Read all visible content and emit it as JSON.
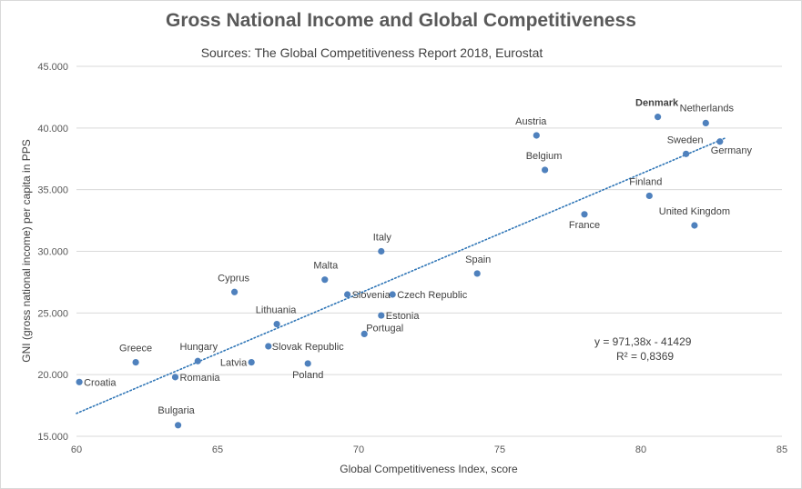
{
  "chart_data": {
    "type": "scatter",
    "title": "Gross National Income and Global Competitiveness",
    "subtitle": "Sources: The Global Competitiveness Report 2018, Eurostat",
    "xlabel": "Global Competitiveness  Index, score",
    "ylabel": "GNI (gross national income) per capita in PPS",
    "xlim": [
      60,
      85
    ],
    "ylim": [
      15000,
      45000
    ],
    "x_ticks": [
      60,
      65,
      70,
      75,
      80,
      85
    ],
    "x_tick_labels": [
      "60",
      "65",
      "70",
      "75",
      "80",
      "85"
    ],
    "y_ticks": [
      15000,
      20000,
      25000,
      30000,
      35000,
      40000,
      45000
    ],
    "y_tick_labels": [
      "15.000",
      "20.000",
      "25.000",
      "30.000",
      "35.000",
      "40.000",
      "45.000"
    ],
    "grid": "horizontal",
    "point_color": "#4f81bd",
    "trendline": {
      "style": "dotted",
      "color": "#2e75b6",
      "slope": 971.38,
      "intercept": -41429,
      "x_range": [
        60,
        83
      ],
      "equation": "y = 971,38x - 41429",
      "r_squared": "R² = 0,8369"
    },
    "points": [
      {
        "name": "Croatia",
        "x": 60.1,
        "y": 19400
      },
      {
        "name": "Greece",
        "x": 62.1,
        "y": 21000
      },
      {
        "name": "Bulgaria",
        "x": 63.6,
        "y": 15900
      },
      {
        "name": "Romania",
        "x": 63.5,
        "y": 19800
      },
      {
        "name": "Hungary",
        "x": 64.3,
        "y": 21100
      },
      {
        "name": "Cyprus",
        "x": 65.6,
        "y": 26700
      },
      {
        "name": "Latvia",
        "x": 66.2,
        "y": 21000
      },
      {
        "name": "Lithuania",
        "x": 67.1,
        "y": 24100
      },
      {
        "name": "Slovak Republic",
        "x": 66.8,
        "y": 22300
      },
      {
        "name": "Poland",
        "x": 68.2,
        "y": 20900
      },
      {
        "name": "Malta",
        "x": 68.8,
        "y": 27700
      },
      {
        "name": "Slovenia",
        "x": 69.6,
        "y": 26500
      },
      {
        "name": "Portugal",
        "x": 70.2,
        "y": 23300
      },
      {
        "name": "Italy",
        "x": 70.8,
        "y": 30000
      },
      {
        "name": "Estonia",
        "x": 70.8,
        "y": 24800
      },
      {
        "name": "Czech Republic",
        "x": 71.2,
        "y": 26500
      },
      {
        "name": "Spain",
        "x": 74.2,
        "y": 28200
      },
      {
        "name": "Austria",
        "x": 76.3,
        "y": 39400
      },
      {
        "name": "Belgium",
        "x": 76.6,
        "y": 36600
      },
      {
        "name": "France",
        "x": 78.0,
        "y": 33000
      },
      {
        "name": "Finland",
        "x": 80.3,
        "y": 34500
      },
      {
        "name": "Denmark",
        "x": 80.6,
        "y": 40900
      },
      {
        "name": "Sweden",
        "x": 81.6,
        "y": 37900
      },
      {
        "name": "United Kingdom",
        "x": 81.9,
        "y": 32100
      },
      {
        "name": "Netherlands",
        "x": 82.3,
        "y": 40400
      },
      {
        "name": "Germany",
        "x": 82.8,
        "y": 38900
      }
    ],
    "label_colors": {
      "default": "#404040",
      "Spain": "#c00000",
      "Denmark": "#548235"
    }
  }
}
